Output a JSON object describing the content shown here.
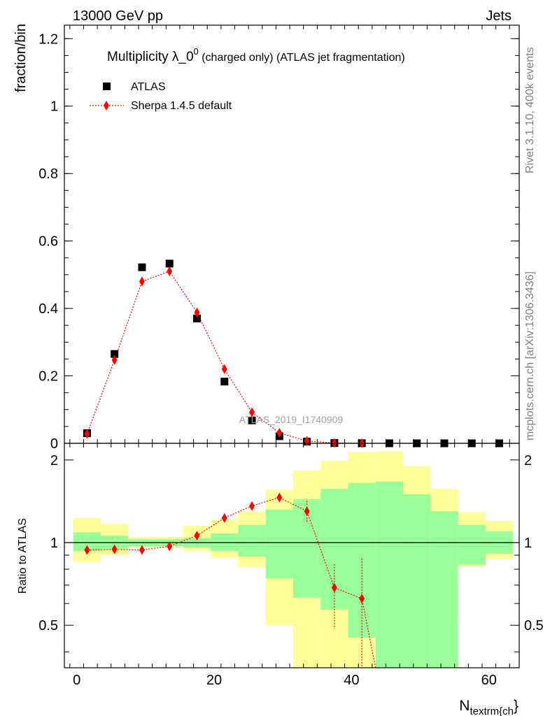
{
  "header": {
    "left": "13000 GeV pp",
    "right": "Jets"
  },
  "side_labels": {
    "rivet": "Rivet 3.1.10,  400k events",
    "mcplots": "mcplots.cern.ch [arXiv:1306.3436]"
  },
  "watermark": "ATLAS_2019_I1740909",
  "chart_data": [
    {
      "type": "scatter",
      "panel": "main",
      "title": "Multiplicity λ_0⁰ (charged only) (ATLAS jet fragmentation)",
      "title_main": "Multiplicity λ_0",
      "title_sup": "0",
      "title_rest": " (charged only) (ATLAS jet fragmentation)",
      "ylabel": "fraction/bin",
      "xlabel": "",
      "xlim": [
        -1.8,
        64.4
      ],
      "ylim": [
        0,
        1.24
      ],
      "yticks": [
        0,
        0.2,
        0.4,
        0.6,
        0.8,
        1,
        1.2
      ],
      "ytick_labels": [
        "0",
        "0.2",
        "0.4",
        "0.6",
        "0.8",
        "1",
        "1.2"
      ],
      "legend": {
        "position": "top-left",
        "entries": [
          "ATLAS",
          "Sherpa 1.4.5 default"
        ]
      },
      "series": [
        {
          "name": "ATLAS",
          "color": "#000000",
          "marker": "square",
          "x": [
            1.5,
            5.5,
            9.5,
            13.5,
            17.5,
            21.5,
            25.5,
            29.5,
            33.5,
            37.5,
            41.5,
            45.5,
            49.5,
            53.5,
            57.5,
            61.5
          ],
          "values": [
            0.03,
            0.265,
            0.522,
            0.533,
            0.37,
            0.183,
            0.068,
            0.021,
            0.005,
            0.001,
            0.0003,
            0.0001,
            0.0,
            0.0,
            0.0,
            0.0
          ]
        },
        {
          "name": "Sherpa 1.4.5 default",
          "color": "#ff0000",
          "marker": "diamond",
          "line": "dotted",
          "x": [
            1.5,
            5.5,
            9.5,
            13.5,
            17.5,
            21.5,
            25.5,
            29.5,
            33.5,
            37.5,
            41.5
          ],
          "values": [
            0.028,
            0.247,
            0.48,
            0.51,
            0.388,
            0.22,
            0.092,
            0.031,
            0.007,
            0.0008,
            0.0002
          ]
        }
      ]
    },
    {
      "type": "line",
      "panel": "ratio",
      "ylabel": "Ratio to ATLAS",
      "xlabel": "N_textrm{ch}",
      "xlabel_main": "N",
      "xlabel_sub": "textrm{ch",
      "xlabel_close": "}",
      "xlim": [
        -1.8,
        64.4
      ],
      "ylim": [
        0.35,
        2.3
      ],
      "xticks": [
        0,
        20,
        40,
        60
      ],
      "xtick_labels": [
        "0",
        "20",
        "40",
        "60"
      ],
      "yticks": [
        0.5,
        1,
        2
      ],
      "ytick_labels": [
        "0.5",
        "1",
        "2"
      ],
      "bin_edges": [
        -0.5,
        3.5,
        7.5,
        11.5,
        15.5,
        19.5,
        23.5,
        27.5,
        31.5,
        35.5,
        39.5,
        43.5,
        47.5,
        51.5,
        55.5,
        59.5,
        63.5
      ],
      "band_stat": {
        "name": "stat uncertainty",
        "color": "#99ff99",
        "low": [
          0.93,
          0.95,
          0.97,
          0.97,
          0.96,
          0.93,
          0.89,
          0.74,
          0.63,
          0.57,
          0.45,
          0.2,
          0.2,
          0.35,
          0.83,
          0.91
        ],
        "high": [
          1.09,
          1.06,
          1.03,
          1.03,
          1.04,
          1.08,
          1.16,
          1.32,
          1.44,
          1.57,
          1.65,
          1.67,
          1.5,
          1.3,
          1.16,
          1.1
        ]
      },
      "band_total": {
        "name": "total uncertainty",
        "color": "#ffff99",
        "low": [
          0.85,
          0.9,
          0.96,
          0.96,
          0.93,
          0.88,
          0.81,
          0.5,
          0.3,
          0.3,
          0.3,
          0.3,
          0.3,
          0.5,
          0.82,
          0.87
        ],
        "high": [
          1.23,
          1.17,
          1.05,
          1.05,
          1.15,
          1.21,
          1.3,
          1.56,
          1.83,
          1.99,
          2.14,
          2.15,
          1.9,
          1.57,
          1.29,
          1.2
        ]
      },
      "series": [
        {
          "name": "Sherpa 1.4.5 default",
          "color": "#ff0000",
          "marker": "diamond",
          "line": "dotted",
          "x": [
            1.5,
            5.5,
            9.5,
            13.5,
            17.5,
            21.5,
            25.5,
            29.5,
            33.5,
            37.5,
            41.5,
            43.5
          ],
          "values": [
            0.94,
            0.945,
            0.94,
            0.97,
            1.06,
            1.23,
            1.36,
            1.46,
            1.3,
            0.685,
            0.625,
            0.2
          ],
          "err_low": [
            0.02,
            0.01,
            0.01,
            0.01,
            0.01,
            0.02,
            0.03,
            0.05,
            0.12,
            0.2,
            0.3,
            0
          ],
          "err_high": [
            0.02,
            0.01,
            0.01,
            0.01,
            0.01,
            0.02,
            0.03,
            0.05,
            0.12,
            0.15,
            0.25,
            0
          ],
          "marker_count": 11
        }
      ],
      "reference_line": 1
    }
  ]
}
